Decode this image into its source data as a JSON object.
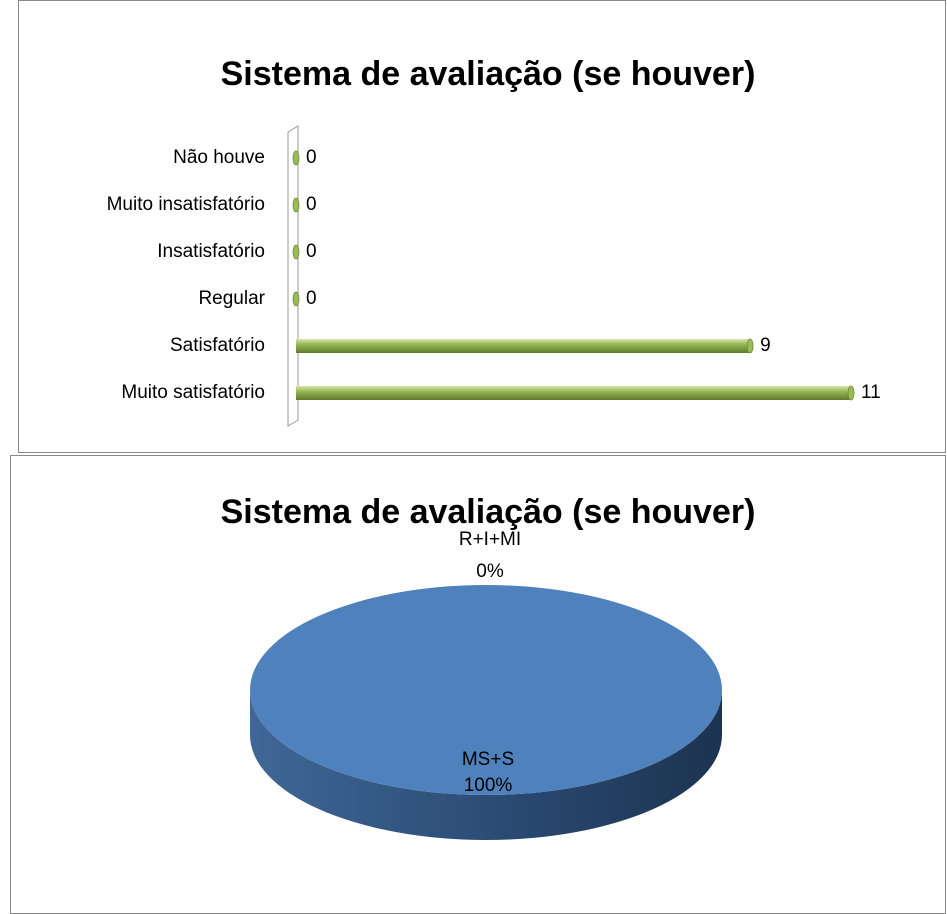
{
  "chart_data": [
    {
      "type": "bar",
      "orientation": "horizontal",
      "title": "Sistema de avaliação (se houver)",
      "categories": [
        "Não houve",
        "Muito insatisfatório",
        "Insatisfatório",
        "Regular",
        "Satisfatório",
        "Muito satisfatório"
      ],
      "values": [
        0,
        0,
        0,
        0,
        9,
        11
      ],
      "color": "#9bbb59"
    },
    {
      "type": "pie",
      "title": "Sistema de avaliação (se houver)",
      "categories": [
        "R+I+MI",
        "MS+S"
      ],
      "values": [
        0,
        100
      ],
      "value_labels": [
        "0%",
        "100%"
      ],
      "colors": [
        "#c0504d",
        "#4f81bd"
      ]
    }
  ]
}
